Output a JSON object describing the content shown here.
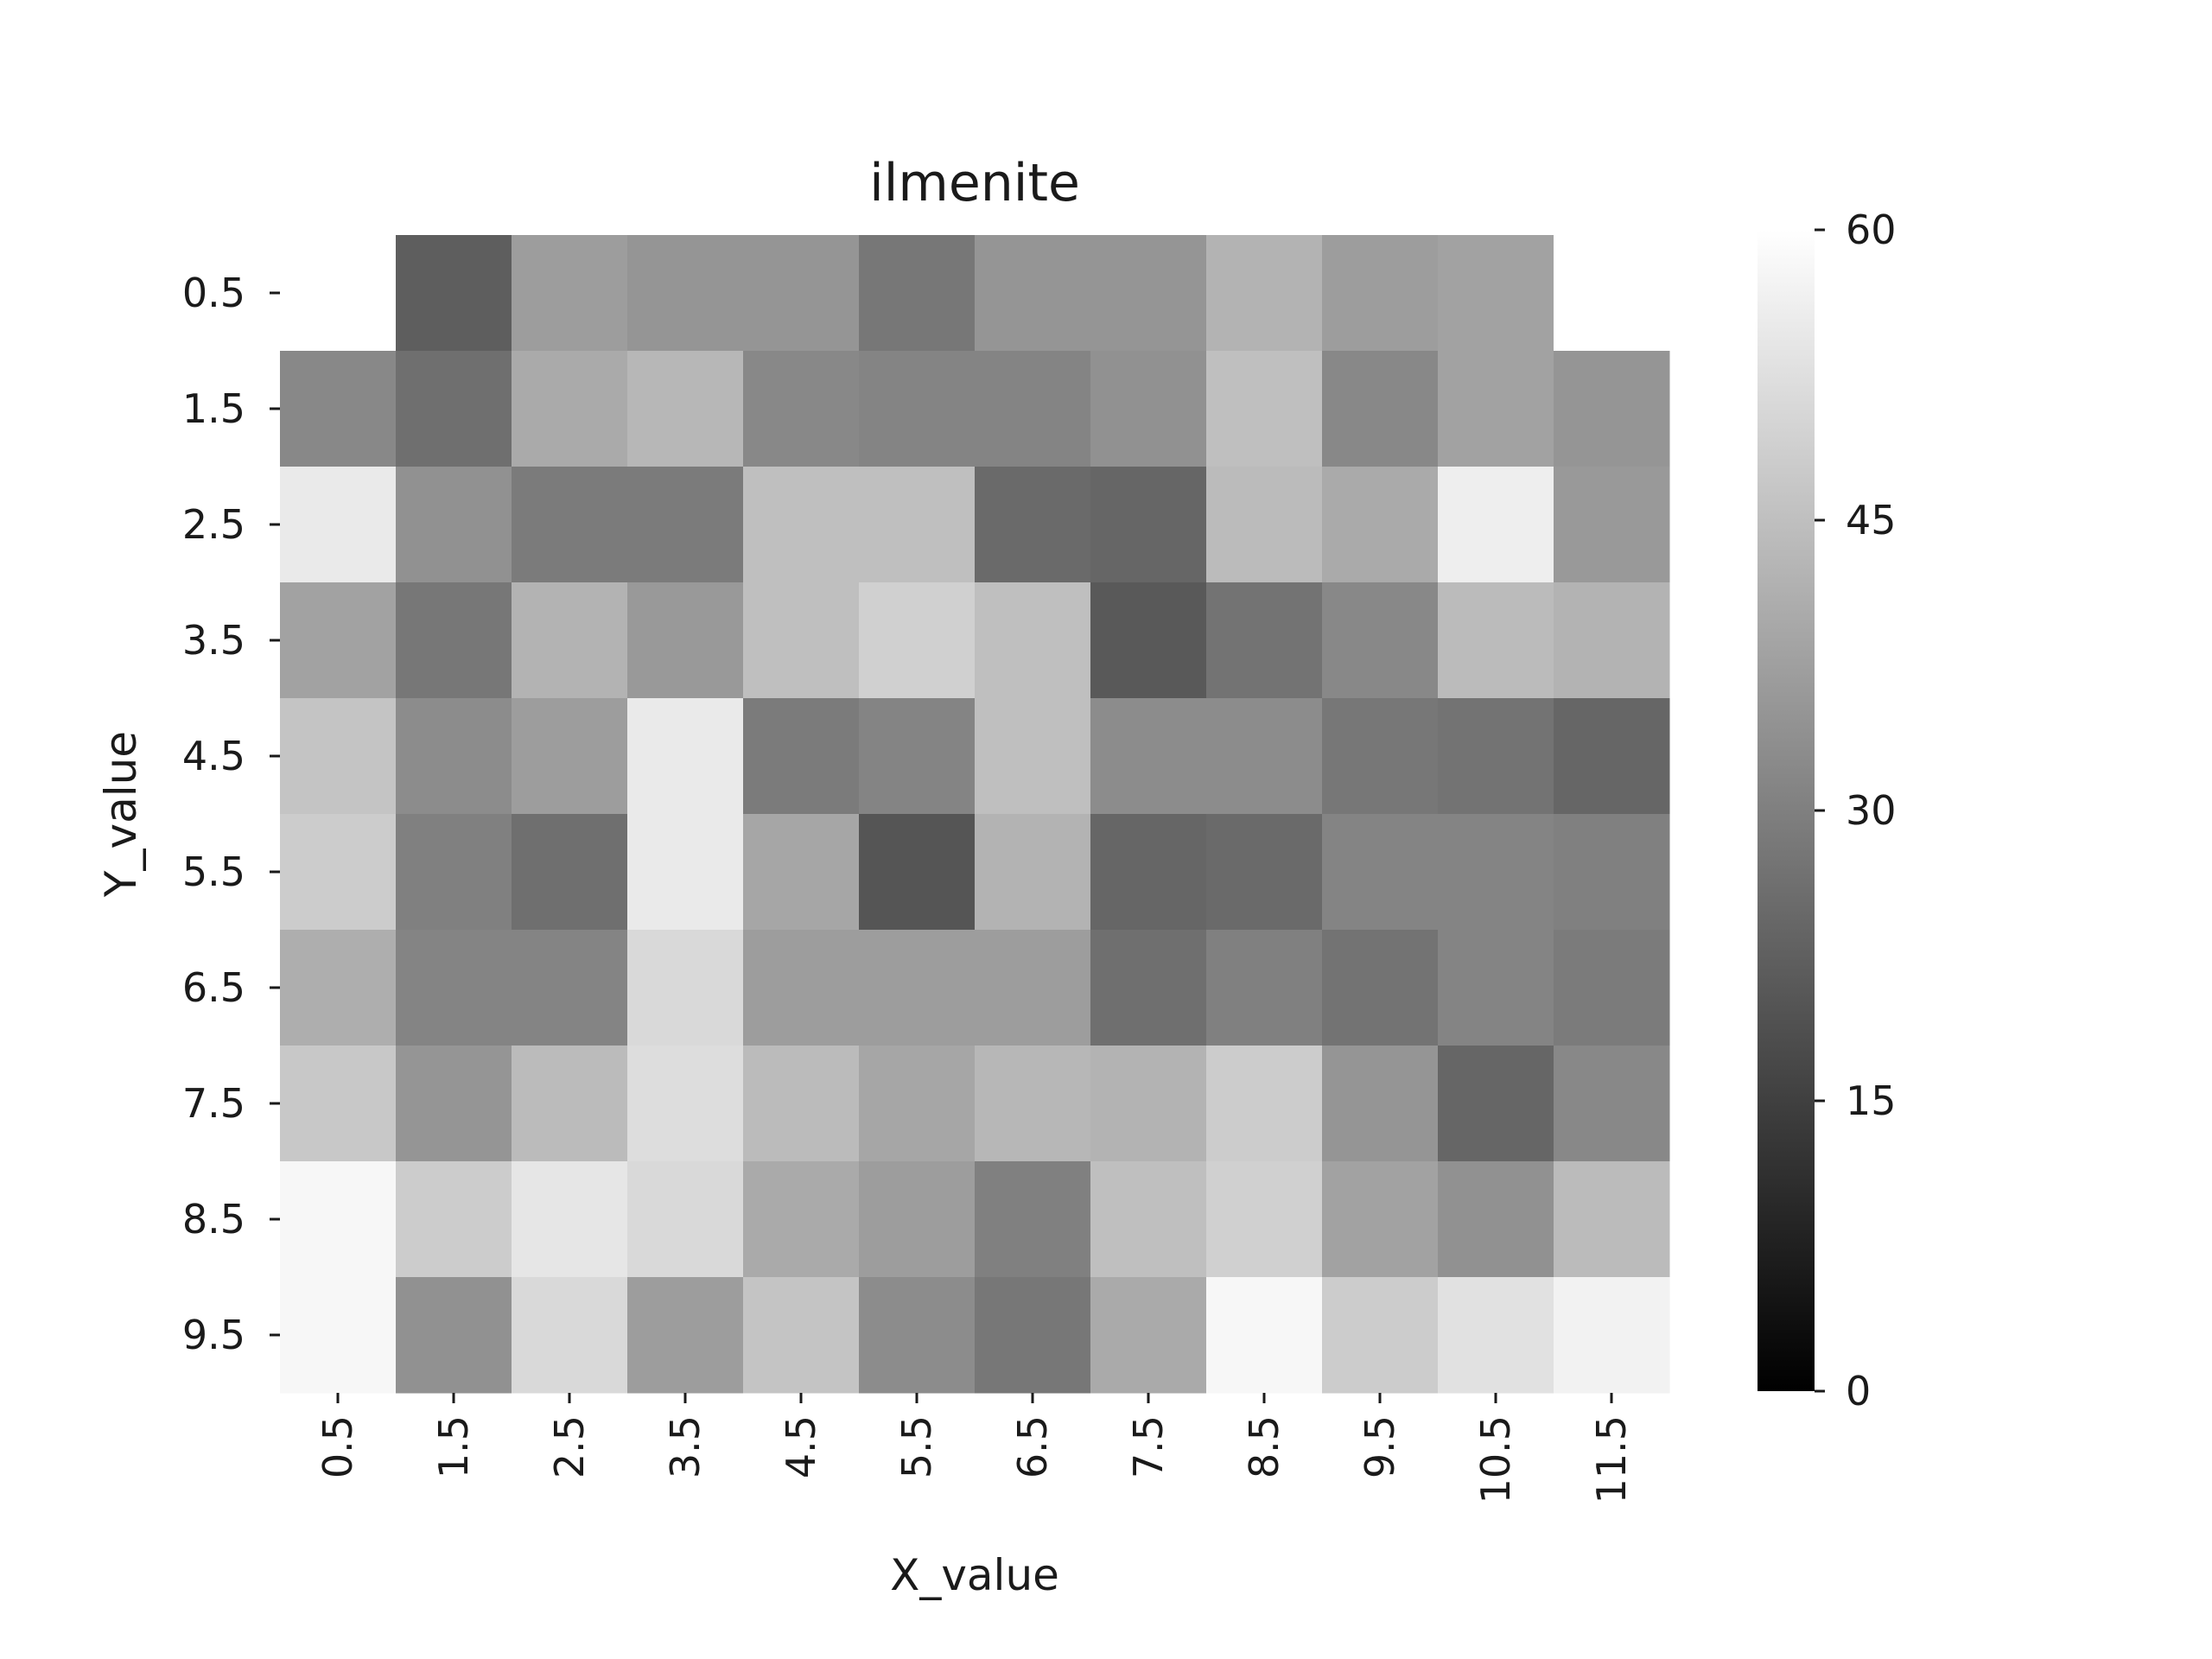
{
  "chart_data": {
    "type": "heatmap",
    "title": "ilmenite",
    "xlabel": "X_value",
    "ylabel": "Y_value",
    "x_categories": [
      "0.5",
      "1.5",
      "2.5",
      "3.5",
      "4.5",
      "5.5",
      "6.5",
      "7.5",
      "8.5",
      "9.5",
      "10.5",
      "11.5"
    ],
    "y_categories": [
      "0.5",
      "1.5",
      "2.5",
      "3.5",
      "4.5",
      "5.5",
      "6.5",
      "7.5",
      "8.5",
      "9.5"
    ],
    "values": [
      [
        null,
        22,
        37,
        35,
        35,
        28,
        35,
        35,
        42,
        37,
        38,
        null
      ],
      [
        32,
        26,
        40,
        43,
        32,
        31,
        31,
        34,
        45,
        32,
        38,
        35
      ],
      [
        55,
        34,
        29,
        29,
        45,
        45,
        25,
        24,
        44,
        40,
        56,
        36
      ],
      [
        38,
        28,
        42,
        36,
        45,
        49,
        45,
        21,
        27,
        32,
        44,
        42
      ],
      [
        46,
        33,
        37,
        55,
        29,
        31,
        45,
        33,
        33,
        28,
        27,
        24
      ],
      [
        48,
        30,
        26,
        55,
        39,
        20,
        42,
        24,
        25,
        31,
        31,
        30
      ],
      [
        41,
        31,
        31,
        51,
        37,
        37,
        37,
        26,
        30,
        27,
        31,
        29
      ],
      [
        47,
        35,
        44,
        52,
        44,
        39,
        43,
        42,
        48,
        35,
        24,
        32
      ],
      [
        58,
        48,
        54,
        51,
        40,
        37,
        30,
        45,
        49,
        38,
        34,
        44
      ],
      [
        58,
        34,
        51,
        37,
        46,
        33,
        28,
        40,
        58,
        48,
        53,
        57
      ]
    ],
    "colorbar": {
      "min": 0,
      "max": 60,
      "ticks": [
        "0",
        "15",
        "30",
        "45",
        "60"
      ],
      "colormap": "grayscale"
    },
    "missing_cells": "white"
  }
}
